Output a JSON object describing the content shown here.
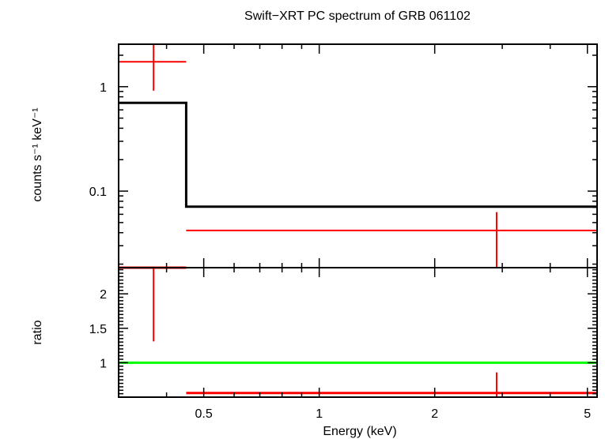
{
  "title": "Swift−XRT PC spectrum of GRB 061102",
  "colors": {
    "data": "#ff0000",
    "model": "#000000",
    "unity_line": "#00ff00",
    "axes": "#000000"
  },
  "chart_data": [
    {
      "type": "scatter",
      "panel": "spectrum",
      "title": "Swift−XRT PC spectrum of GRB 061102",
      "xlabel": "Energy (keV)",
      "ylabel": "counts s⁻¹ keV⁻¹",
      "xscale": "log",
      "yscale": "log",
      "xlim": [
        0.3,
        5.3
      ],
      "ylim": [
        0.0185,
        2.55
      ],
      "y_tick_labels": [
        "0.1",
        "1"
      ],
      "series": [
        {
          "kind": "data",
          "points": [
            {
              "x": 0.37,
              "xlo": 0.3,
              "xhi": 0.45,
              "y": 1.73,
              "ylo": 0.915,
              "yhi": 2.55
            },
            {
              "x": 2.9,
              "xlo": 0.45,
              "xhi": 5.3,
              "y": 0.042,
              "ylo": 0.0185,
              "yhi": 0.063
            }
          ]
        },
        {
          "kind": "model",
          "steps": [
            {
              "xlo": 0.3,
              "xhi": 0.45,
              "y": 0.7
            },
            {
              "xlo": 0.45,
              "xhi": 5.3,
              "y": 0.071
            }
          ]
        }
      ]
    },
    {
      "type": "scatter",
      "panel": "ratio",
      "xlabel": "Energy (keV)",
      "ylabel": "ratio",
      "xscale": "log",
      "xlim": [
        0.3,
        5.3
      ],
      "ylim": [
        0.5,
        2.38
      ],
      "x_tick_labels": [
        "0.5",
        "1",
        "2",
        "5"
      ],
      "x_tick_values": [
        0.5,
        1,
        2,
        5
      ],
      "y_tick_labels": [
        "1",
        "1.5",
        "2"
      ],
      "y_tick_values": [
        1,
        1.5,
        2
      ],
      "reference_line": 1,
      "series": [
        {
          "kind": "data",
          "points": [
            {
              "x": 0.37,
              "xlo": 0.3,
              "xhi": 0.45,
              "y": 2.38,
              "ylo": 1.31,
              "yhi": 2.38
            },
            {
              "x": 2.9,
              "xlo": 0.45,
              "xhi": 5.3,
              "y": 0.56,
              "ylo": 0.49,
              "yhi": 0.86
            }
          ]
        }
      ]
    }
  ]
}
